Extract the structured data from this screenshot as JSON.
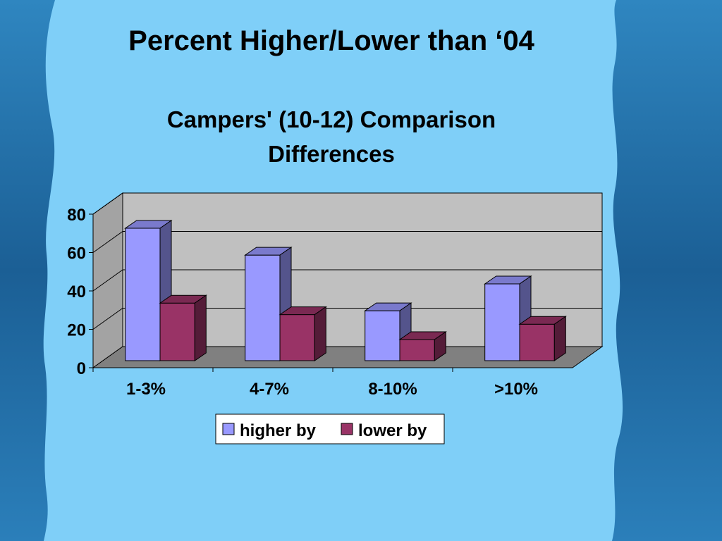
{
  "slide": {
    "title": "Percent Higher/Lower than ‘04",
    "background_color": "#7fcff8",
    "frame_color": "#1f6da6"
  },
  "chart_data": {
    "type": "bar",
    "style": "3d-clustered-column",
    "title_lines": [
      "Campers' (10-12) Comparison",
      "Differences"
    ],
    "categories": [
      "1-3%",
      "4-7%",
      "8-10%",
      ">10%"
    ],
    "series": [
      {
        "name": "higher by",
        "values": [
          69,
          55,
          26,
          40
        ],
        "color": "#9999ff"
      },
      {
        "name": "lower by",
        "values": [
          30,
          24,
          11,
          19
        ],
        "color": "#993366"
      }
    ],
    "y_ticks": [
      "0",
      "20",
      "40",
      "60",
      "80"
    ],
    "ylim": [
      0,
      80
    ],
    "grid": true,
    "legend": "bottom-center",
    "wall_color": "#c0c0c0",
    "floor_color": "#808080"
  }
}
